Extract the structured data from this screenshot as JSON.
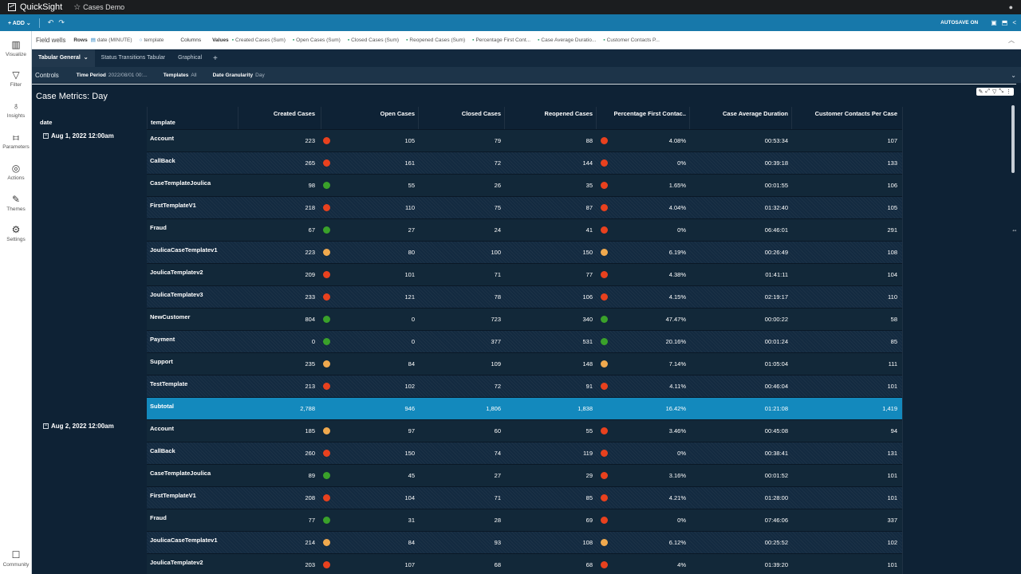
{
  "app": {
    "name": "QuickSight",
    "doc_title": "Cases Demo",
    "user_icon": "user-icon"
  },
  "toolbar": {
    "add_label": "ADD",
    "autosave_label": "AUTOSAVE ON"
  },
  "sidebar": {
    "items": [
      {
        "label": "Visualize",
        "icon": "chart-icon"
      },
      {
        "label": "Filter",
        "icon": "filter-icon"
      },
      {
        "label": "Insights",
        "icon": "lightbulb-icon"
      },
      {
        "label": "Parameters",
        "icon": "sliders-icon"
      },
      {
        "label": "Actions",
        "icon": "actions-icon"
      },
      {
        "label": "Themes",
        "icon": "brush-icon"
      },
      {
        "label": "Settings",
        "icon": "gear-icon"
      }
    ],
    "community_label": "Community"
  },
  "field_wells": {
    "label": "Field wells",
    "rows_label": "Rows",
    "rows": [
      "date (MINUTE)",
      "template"
    ],
    "columns_label": "Columns",
    "values_label": "Values",
    "values": [
      "Created Cases (Sum)",
      "Open Cases (Sum)",
      "Closed Cases (Sum)",
      "Reopened Cases (Sum)",
      "Percentage First Cont...",
      "Case Average Duratio...",
      "Customer Contacts P..."
    ]
  },
  "sheets": [
    "Tabular General",
    "Status Transitions Tabular",
    "Graphical"
  ],
  "controls": {
    "title": "Controls",
    "items": [
      {
        "label": "Time Period",
        "value": "2022/08/01 00:..."
      },
      {
        "label": "Templates",
        "value": "All"
      },
      {
        "label": "Date Granularity",
        "value": "Day"
      }
    ]
  },
  "visual": {
    "title": "Case Metrics: Day",
    "headers": {
      "date": "date",
      "template": "template",
      "created": "Created Cases",
      "open": "Open Cases",
      "closed": "Closed Cases",
      "reopened": "Reopened Cases",
      "pfc": "Percentage First Contac..",
      "avg": "Case Average Duration",
      "contacts": "Customer Contacts Per Case"
    },
    "groups": [
      {
        "date": "Aug 1, 2022 12:00am",
        "rows": [
          {
            "t": "Account",
            "c": "223",
            "cd": "red",
            "o": "105",
            "cl": "79",
            "r": "88",
            "rd": "red",
            "p": "4.08%",
            "a": "00:53:34",
            "cc": "107"
          },
          {
            "t": "CallBack",
            "c": "265",
            "cd": "red",
            "o": "161",
            "cl": "72",
            "r": "144",
            "rd": "red",
            "p": "0%",
            "a": "00:39:18",
            "cc": "133"
          },
          {
            "t": "CaseTemplateJoulica",
            "c": "98",
            "cd": "green",
            "o": "55",
            "cl": "26",
            "r": "35",
            "rd": "red",
            "p": "1.65%",
            "a": "00:01:55",
            "cc": "106"
          },
          {
            "t": "FirstTemplateV1",
            "c": "218",
            "cd": "red",
            "o": "110",
            "cl": "75",
            "r": "87",
            "rd": "red",
            "p": "4.04%",
            "a": "01:32:40",
            "cc": "105"
          },
          {
            "t": "Fraud",
            "c": "67",
            "cd": "green",
            "o": "27",
            "cl": "24",
            "r": "41",
            "rd": "red",
            "p": "0%",
            "a": "06:46:01",
            "cc": "291"
          },
          {
            "t": "JoulicaCaseTemplatev1",
            "c": "223",
            "cd": "orange",
            "o": "80",
            "cl": "100",
            "r": "150",
            "rd": "orange",
            "p": "6.19%",
            "a": "00:26:49",
            "cc": "108"
          },
          {
            "t": "JoulicaTemplatev2",
            "c": "209",
            "cd": "red",
            "o": "101",
            "cl": "71",
            "r": "77",
            "rd": "red",
            "p": "4.38%",
            "a": "01:41:11",
            "cc": "104"
          },
          {
            "t": "JoulicaTemplatev3",
            "c": "233",
            "cd": "red",
            "o": "121",
            "cl": "78",
            "r": "106",
            "rd": "red",
            "p": "4.15%",
            "a": "02:19:17",
            "cc": "110"
          },
          {
            "t": "NewCustomer",
            "c": "804",
            "cd": "green",
            "o": "0",
            "cl": "723",
            "r": "340",
            "rd": "green",
            "p": "47.47%",
            "a": "00:00:22",
            "cc": "58"
          },
          {
            "t": "Payment",
            "c": "0",
            "cd": "green",
            "o": "0",
            "cl": "377",
            "r": "531",
            "rd": "green",
            "p": "20.16%",
            "a": "00:01:24",
            "cc": "85"
          },
          {
            "t": "Support",
            "c": "235",
            "cd": "orange",
            "o": "84",
            "cl": "109",
            "r": "148",
            "rd": "orange",
            "p": "7.14%",
            "a": "01:05:04",
            "cc": "111"
          },
          {
            "t": "TestTemplate",
            "c": "213",
            "cd": "red",
            "o": "102",
            "cl": "72",
            "r": "91",
            "rd": "red",
            "p": "4.11%",
            "a": "00:46:04",
            "cc": "101"
          }
        ],
        "subtotal": {
          "t": "Subtotal",
          "c": "2,788",
          "o": "946",
          "cl": "1,806",
          "r": "1,838",
          "p": "16.42%",
          "a": "01:21:08",
          "cc": "1,419"
        }
      },
      {
        "date": "Aug 2, 2022 12:00am",
        "rows": [
          {
            "t": "Account",
            "c": "185",
            "cd": "orange",
            "o": "97",
            "cl": "60",
            "r": "55",
            "rd": "red",
            "p": "3.46%",
            "a": "00:45:08",
            "cc": "94"
          },
          {
            "t": "CallBack",
            "c": "260",
            "cd": "red",
            "o": "150",
            "cl": "74",
            "r": "119",
            "rd": "red",
            "p": "0%",
            "a": "00:38:41",
            "cc": "131"
          },
          {
            "t": "CaseTemplateJoulica",
            "c": "89",
            "cd": "green",
            "o": "45",
            "cl": "27",
            "r": "29",
            "rd": "red",
            "p": "3.16%",
            "a": "00:01:52",
            "cc": "101"
          },
          {
            "t": "FirstTemplateV1",
            "c": "208",
            "cd": "red",
            "o": "104",
            "cl": "71",
            "r": "85",
            "rd": "red",
            "p": "4.21%",
            "a": "01:28:00",
            "cc": "101"
          },
          {
            "t": "Fraud",
            "c": "77",
            "cd": "green",
            "o": "31",
            "cl": "28",
            "r": "69",
            "rd": "red",
            "p": "0%",
            "a": "07:46:06",
            "cc": "337"
          },
          {
            "t": "JoulicaCaseTemplatev1",
            "c": "214",
            "cd": "orange",
            "o": "84",
            "cl": "93",
            "r": "108",
            "rd": "orange",
            "p": "6.12%",
            "a": "00:25:52",
            "cc": "102"
          },
          {
            "t": "JoulicaTemplatev2",
            "c": "203",
            "cd": "red",
            "o": "107",
            "cl": "68",
            "r": "68",
            "rd": "red",
            "p": "4%",
            "a": "01:39:20",
            "cc": "101"
          }
        ]
      }
    ],
    "dot_colors": {
      "red": "#e8411e",
      "green": "#3aa12a",
      "orange": "#f0a94e"
    }
  }
}
